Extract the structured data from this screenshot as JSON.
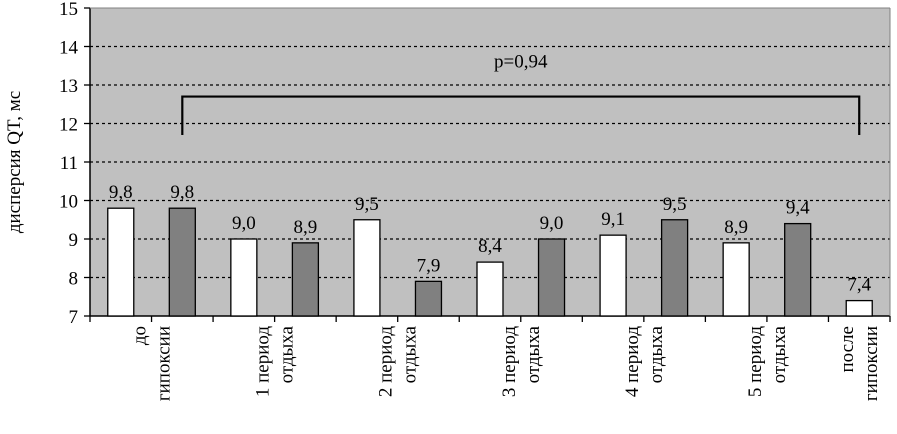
{
  "chart_data": {
    "type": "bar",
    "ylabel": "дисперсия QT, мс",
    "ylim": [
      7,
      15
    ],
    "yticks": [
      "7",
      "8",
      "9",
      "10",
      "11",
      "12",
      "13",
      "14",
      "15"
    ],
    "grid": true,
    "categories": [
      [
        "до",
        "гипоксии"
      ],
      [
        "1 период",
        "отдыха"
      ],
      [
        "2 период",
        "отдыха"
      ],
      [
        "3 период",
        "отдыха"
      ],
      [
        "4 период",
        "отдыха"
      ],
      [
        "5 период",
        "отдыха"
      ],
      [
        "после",
        "гипоксии"
      ]
    ],
    "bars": [
      {
        "value": 9.8,
        "label": "9,8",
        "fill": "#ffffff"
      },
      {
        "value": 9.8,
        "label": "9,8",
        "fill": "#808080"
      },
      {
        "value": 9.0,
        "label": "9,0",
        "fill": "#ffffff"
      },
      {
        "value": 8.9,
        "label": "8,9",
        "fill": "#808080"
      },
      {
        "value": 9.5,
        "label": "9,5",
        "fill": "#ffffff"
      },
      {
        "value": 7.9,
        "label": "7,9",
        "fill": "#808080"
      },
      {
        "value": 8.4,
        "label": "8,4",
        "fill": "#ffffff"
      },
      {
        "value": 9.0,
        "label": "9,0",
        "fill": "#808080"
      },
      {
        "value": 9.1,
        "label": "9,1",
        "fill": "#ffffff"
      },
      {
        "value": 9.5,
        "label": "9,5",
        "fill": "#808080"
      },
      {
        "value": 8.9,
        "label": "8,9",
        "fill": "#ffffff"
      },
      {
        "value": 9.4,
        "label": "9,4",
        "fill": "#808080"
      },
      {
        "value": 7.4,
        "label": "7,4",
        "fill": "#ffffff"
      }
    ],
    "annotation": {
      "text": "p=0,94",
      "from_bar": 1,
      "to_bar": 12
    },
    "colors": {
      "plot_background": "#c0c0c0",
      "light_bar": "#ffffff",
      "dark_bar": "#808080"
    }
  }
}
